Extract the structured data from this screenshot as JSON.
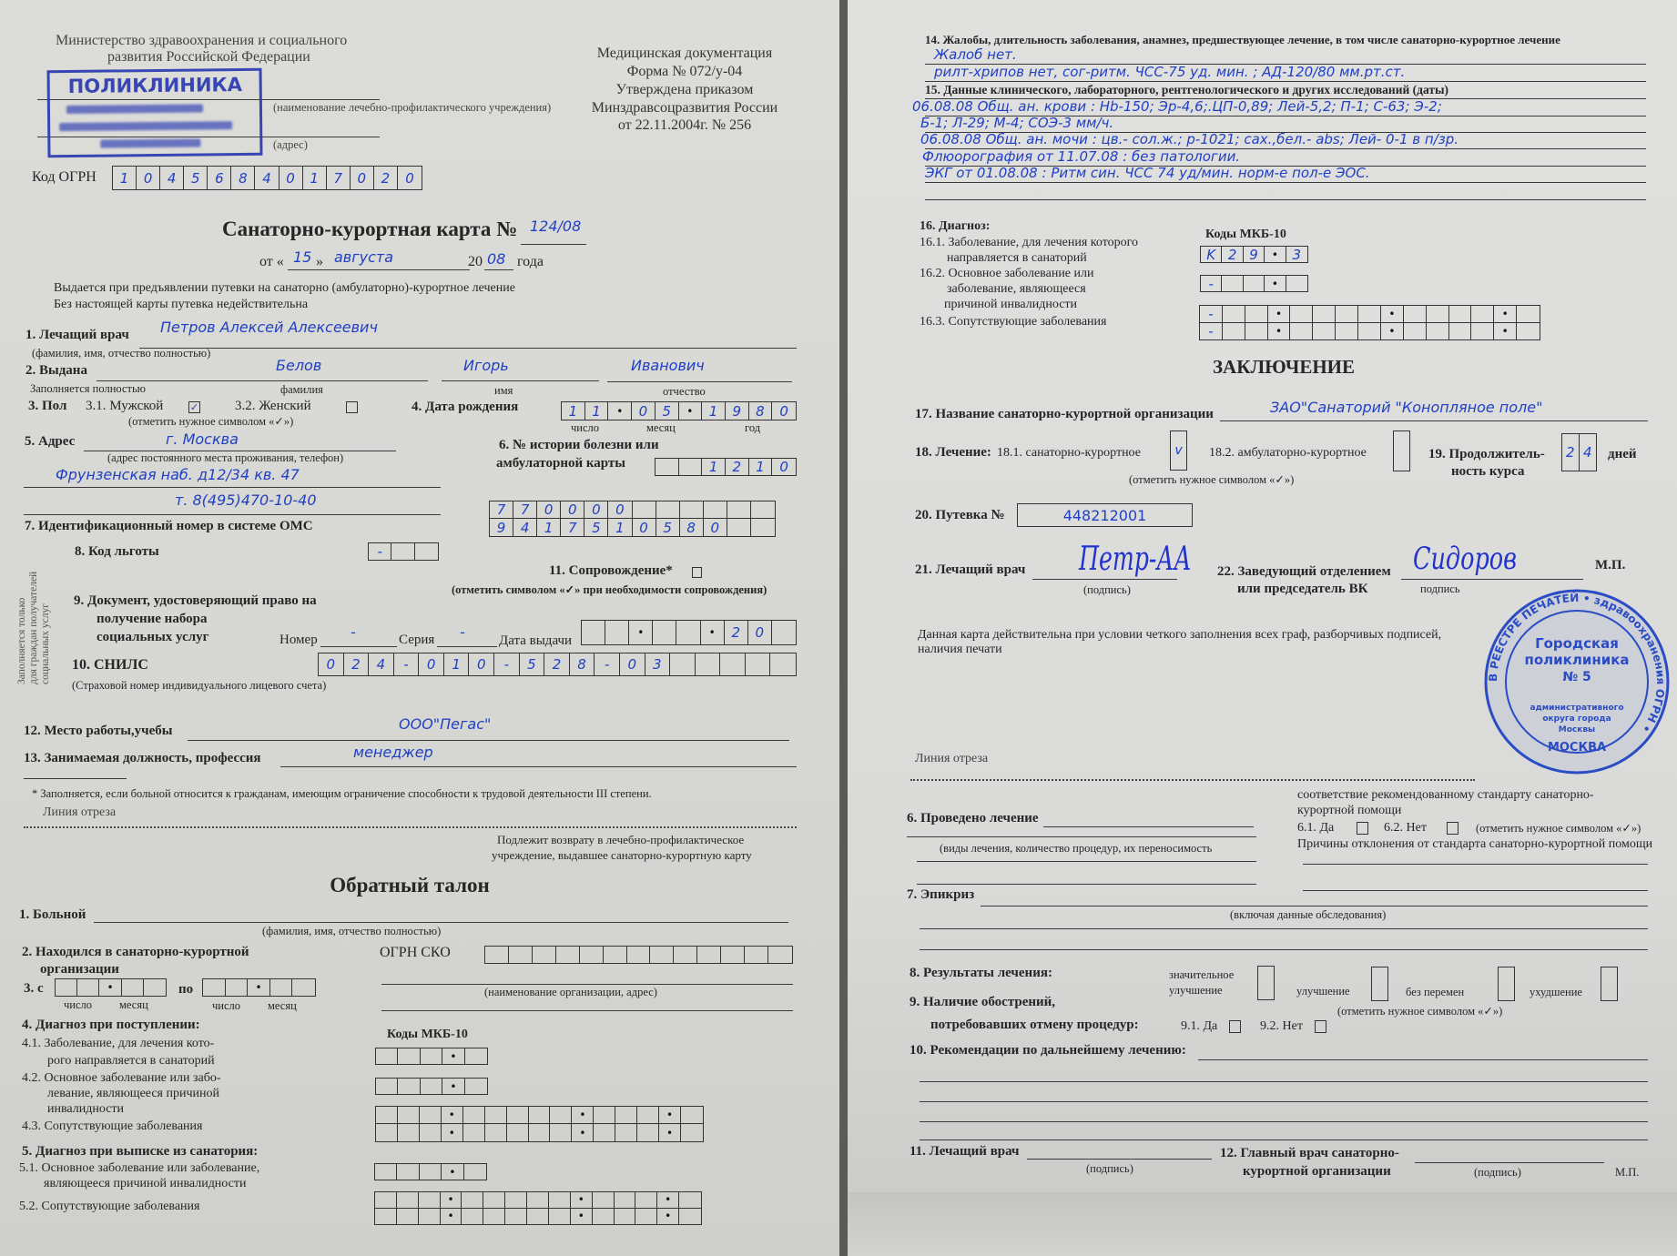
{
  "left": {
    "ministry": [
      "Министерство здравоохранения и социального",
      "развития Российской Федерации"
    ],
    "institution_caption": "(наименование лечебно-профилактического учреждения)",
    "address_caption": "(адрес)",
    "stamp": {
      "title": "ПОЛИКЛИНИКА",
      "color": "#2b3ab0"
    },
    "form_header": [
      "Медицинская документация",
      "Форма № 072/у-04",
      "Утверждена приказом",
      "Минздравсоцразвития России",
      "от 22.11.2004г. № 256"
    ],
    "ogrn_label": "Код ОГРН",
    "ogrn_cells": [
      "1",
      "0",
      "4",
      "5",
      "6",
      "8",
      "4",
      "0",
      "1",
      "7",
      "0",
      "2",
      "0"
    ],
    "card_title": "Санаторно-курортная карта  №",
    "card_number": "124/08",
    "date": {
      "prefix": "от «",
      "day": "15",
      "quote_close": "»",
      "month": "августа",
      "year_prefix": "20",
      "year": "08",
      "suffix": "года"
    },
    "issued_notes": [
      "Выдается при предъявлении путевки на санаторно (амбулаторно)-курортное лечение",
      "Без настоящей карты путевка недействительна"
    ],
    "f1": {
      "label": "1. Лечащий врач",
      "value": "Петров   Алексей   Алексеевич",
      "caption": "(фамилия, имя, отчество полностью)"
    },
    "f2": {
      "label": "2. Выдана",
      "surname": "Белов",
      "name": "Игорь",
      "patronymic": "Иванович",
      "caption_full": "Заполняется полностью",
      "caption_surname": "фамилия",
      "caption_name": "имя",
      "caption_patronymic": "отчество"
    },
    "f3": {
      "label": "3. Пол",
      "male": "3.1. Мужской",
      "female": "3.2. Женский",
      "male_checked": true,
      "female_checked": false,
      "caption": "(отметить нужное символом «✓»)"
    },
    "f4": {
      "label": "4. Дата рождения",
      "cells": [
        "1",
        "1",
        "•",
        "0",
        "5",
        "•",
        "1",
        "9",
        "8",
        "0"
      ],
      "cap_day": "число",
      "cap_month": "месяц",
      "cap_year": "год"
    },
    "f5": {
      "label": "5. Адрес",
      "city": "г. Москва",
      "caption": "(адрес постоянного места проживания, телефон)",
      "street": "Фрунзенская наб.  д12/34   кв. 47",
      "phone": "т. 8(495)470-10-40"
    },
    "f6": {
      "label1": "6. № истории болезни или",
      "label2": "амбулаторной карты",
      "cells": [
        "",
        "",
        "1",
        "2",
        "1",
        "0"
      ]
    },
    "f7": {
      "label": "7. Идентификационный номер в системе ОМС",
      "cells": [
        [
          "7",
          "7",
          "0",
          "0",
          "0",
          "0",
          "",
          "",
          "",
          "",
          "",
          ""
        ],
        [
          "9",
          "4",
          "1",
          "7",
          "5",
          "1",
          "0",
          "5",
          "8",
          "0",
          "",
          ""
        ]
      ]
    },
    "vertical_note": [
      "Заполняется только",
      "для граждан получателей",
      "социальных услуг"
    ],
    "f8": {
      "label": "8. Код льготы",
      "cells": [
        "-",
        "",
        ""
      ]
    },
    "f11": {
      "label": "11. Сопровождение*",
      "checked": false,
      "caption": "(отметить символом «✓» при необходимости сопровождения)"
    },
    "f9": {
      "label": [
        "9. Документ, удостоверяющий право на",
        "получение набора",
        "социальных услуг"
      ],
      "number_label": "Номер",
      "number_value": "-",
      "series_label": "Серия",
      "series_value": "-",
      "date_label": "Дата выдачи",
      "date_cells": [
        "",
        "",
        "•",
        "",
        "",
        "•",
        "2",
        "0",
        ""
      ]
    },
    "f10": {
      "label": "10. СНИЛС",
      "caption": "(Страховой номер индивидуального лицевого счета)",
      "cells": [
        "0",
        "2",
        "4",
        "-",
        "0",
        "1",
        "0",
        "-",
        "5",
        "2",
        "8",
        "-",
        "0",
        "3",
        "",
        "",
        "",
        "",
        ""
      ]
    },
    "f12": {
      "label": "12. Место работы,учебы",
      "value": "ООО\"Пегас\""
    },
    "f13": {
      "label": "13. Занимаемая должность, профессия",
      "value": "менеджер"
    },
    "footnote": "* Заполняется, если больной относится к гражданам, имеющим ограничение способности к трудовой деятельности III степени.",
    "cut_line": "Линия  отреза",
    "return_note": [
      "Подлежит  возврату в лечебно-профилактическое",
      "учреждение, выдавшее санаторно-курортную карту"
    ],
    "coupon": {
      "title": "Обратный талон",
      "patient_label": "1. Больной",
      "patient_caption": "(фамилия, имя, отчество полностью)",
      "stay_label": [
        "2. Находился в санаторно-курортной",
        "организации"
      ],
      "ogrn_sko_label": "ОГРН СКО",
      "ogrn_sko_cells": [
        "",
        "",
        "",
        "",
        "",
        "",
        "",
        "",
        "",
        "",
        "",
        "",
        ""
      ],
      "org_caption": "(наименование организации, адрес)",
      "from_label": "3. с",
      "to_label": "по",
      "from_cells": [
        "",
        "",
        "•",
        "",
        ""
      ],
      "to_cells": [
        "",
        "",
        "•",
        "",
        ""
      ],
      "cap_day": "число",
      "cap_month": "месяц",
      "diag_in_label": "4. Диагноз при поступлении:",
      "icd_label": "Коды МКБ-10",
      "d41": [
        "4.1. Заболевание, для лечения кото-",
        "рого направляется в санаторий"
      ],
      "d42": [
        "4.2. Основное заболевание или забо-",
        "левание, являющееся причиной",
        "инвалидности"
      ],
      "d43": "4.3. Сопутствующие заболевания",
      "diag_out_label": "5.    Диагноз при выписке из санатория:",
      "d51": [
        "5.1. Основное заболевание или заболевание,",
        "являющееся причиной инвалидности"
      ],
      "d52": "5.2.  Сопутствующие заболевания",
      "code_cells": [
        "",
        "",
        "",
        "•",
        ""
      ],
      "multi_cells": [
        [
          "",
          "",
          "",
          "•",
          "",
          "",
          "",
          "",
          "",
          "•",
          "",
          "",
          "",
          "•",
          ""
        ],
        [
          "",
          "",
          "",
          "•",
          "",
          "",
          "",
          "",
          "",
          "•",
          "",
          "",
          "",
          "•",
          ""
        ]
      ]
    }
  },
  "right": {
    "f14": {
      "label": "14. Жалобы, длительность заболевания, анамнез, предшествующее лечение, в том числе санаторно-курортное лечение",
      "lines": [
        "Жалоб нет.",
        "рилт-хрипов нет,  сог-ритм. ЧСС-75 уд. мин. ;  АД-120/80 мм.рт.ст."
      ]
    },
    "f15": {
      "label": "15. Данные клинического, лабораторного, рентгенологического и других исследований (даты)",
      "lines": [
        "06.08.08 Общ. ан. крови : Hb-150; Эр-4,6;.ЦП-0,89; Лей-5,2; П-1; С-63; Э-2;",
        "Б-1; Л-29; М-4; СОЭ-3 мм/ч.",
        "06.08.08 Общ. ан. мочи : цв.- сол.ж.; р-1021; сах.,бел.- abs; Лей- 0-1 в п/зр.",
        "Флюорография от 11.07.08 : без патологии.",
        "ЭКГ от 01.08.08 : Ритм син. ЧСС 74 уд/мин. норм-е пол-е ЭОС."
      ]
    },
    "f16": {
      "label": "16. Диагноз:",
      "icd_label": "Коды МКБ-10",
      "d161": [
        "16.1. Заболевание, для лечения которого",
        "направляется в санаторий"
      ],
      "d162": [
        "16.2. Основное заболевание или",
        "заболевание, являющееся",
        "причиной инвалидности"
      ],
      "d163": "16.3. Сопутствующие заболевания",
      "cells_161": [
        "K",
        "2",
        "9",
        "•",
        "3"
      ],
      "cells_162": [
        "-",
        "",
        "",
        "•",
        ""
      ],
      "cells_163": [
        [
          "-",
          "",
          "",
          "•",
          "",
          "",
          "",
          "",
          "•",
          "",
          "",
          "",
          "",
          "•",
          ""
        ],
        [
          "-",
          "",
          "",
          "•",
          "",
          "",
          "",
          "",
          "•",
          "",
          "",
          "",
          "",
          "•",
          ""
        ]
      ]
    },
    "conclusion_title": "ЗАКЛЮЧЕНИЕ",
    "f17": {
      "label": "17. Название санаторно-курортной организации",
      "value": "ЗАО\"Санаторий \"Конопляное поле\""
    },
    "f18": {
      "label": "18. Лечение:",
      "opt1": "18.1. санаторно-курортное",
      "opt1_mark": "v",
      "opt2": "18.2. амбулаторно-курортное",
      "opt2_mark": "",
      "caption": "(отметить нужное символом «✓»)"
    },
    "f19": {
      "label1": "19. Продолжитель-",
      "label2": "ность курса",
      "cells": [
        "2",
        "4"
      ],
      "unit": "дней"
    },
    "f20": {
      "label": "20. Путевка №",
      "value": "448212001"
    },
    "f21": {
      "label": "21. Лечащий врач",
      "signature": "Петр-АА",
      "caption": "(подпись)"
    },
    "f22": {
      "label1": "22. Заведующий отделением",
      "label2": "или председатель ВК",
      "caption": "подпись",
      "signature": "Сидоров",
      "seal_mark": "М.П."
    },
    "round_stamp": {
      "center": [
        "Городская",
        "поликлиника",
        "№ 5"
      ],
      "lower": [
        "административного",
        "округа города",
        "Москвы"
      ],
      "ring": "В РЕЕСТРЕ ПЕЧАТЕЙ • здравоохранения ОГРН •",
      "city": "МОСКВА",
      "color": "#2a4cc4"
    },
    "validity_note": "Данная карта действительна при условии четкого заполнения всех граф, разборчивых подписей, наличия печати",
    "cut_line": "Линия  отреза",
    "coupon": {
      "standard_text": [
        "соответствие рекомендованному стандарту санаторно-",
        "курортной помощи"
      ],
      "f6_label": "6. Проведено лечение",
      "f6_caption": "(виды лечения, количество процедур, их переносимость",
      "f61": "6.1.  Да",
      "f62": "6.2.  Нет",
      "mark_caption": "(отметить нужное символом «✓»)",
      "deviation_label": "Причины отклонения от стандарта санаторно-курортной помощи",
      "f7_label": "7. Эпикриз",
      "f7_caption": "(включая данные обследования)",
      "f8_label": "8. Результаты лечения:",
      "results": [
        [
          "значительное",
          "улучшение"
        ],
        "улучшение",
        "без перемен",
        "ухудшение"
      ],
      "f9_label": [
        "9. Наличие обострений,",
        "потребовавших отмену процедур:"
      ],
      "f91": "9.1. Да",
      "f92": "9.2. Нет",
      "f10_label": "10. Рекомендации по дальнейшему лечению:",
      "f11_label": "11. Лечащий врач",
      "f12_label": [
        "12. Главный врач санаторно-",
        "курортной организации"
      ],
      "sign_caption": "(подпись)",
      "seal_mark": "М.П."
    }
  }
}
